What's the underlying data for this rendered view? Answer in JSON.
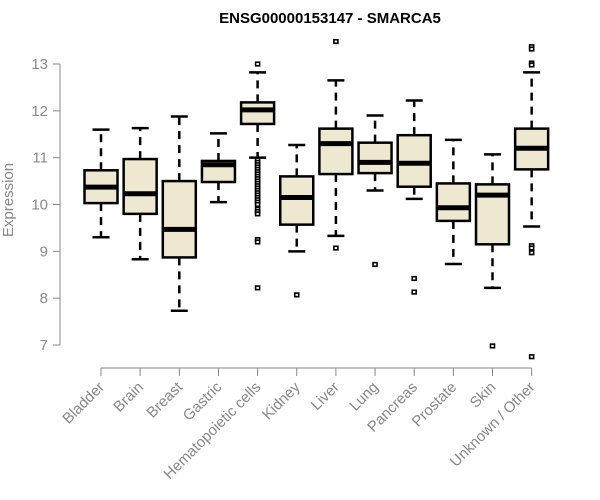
{
  "chart_data": {
    "type": "boxplot",
    "title": "ENSG00000153147 - SMARCA5",
    "xlabel": "",
    "ylabel": "Expression",
    "ylim": [
      7,
      13
    ],
    "yticks": [
      7,
      8,
      9,
      10,
      11,
      12,
      13
    ],
    "grid": false,
    "legend": "none",
    "colors": {
      "box_fill": "#EEE8D0",
      "box_stroke": "#000000",
      "axis": "#888888"
    },
    "categories": [
      "Bladder",
      "Brain",
      "Breast",
      "Gastric",
      "Hematopoietic cells",
      "Kidney",
      "Liver",
      "Lung",
      "Pancreas",
      "Prostate",
      "Skin",
      "Unknown / Other"
    ],
    "boxes": [
      {
        "name": "Bladder",
        "whisker_low": 9.3,
        "q1": 10.03,
        "median": 10.37,
        "q3": 10.73,
        "whisker_high": 11.6,
        "outliers": []
      },
      {
        "name": "Brain",
        "whisker_low": 8.83,
        "q1": 9.8,
        "median": 10.23,
        "q3": 10.97,
        "whisker_high": 11.63,
        "outliers": []
      },
      {
        "name": "Breast",
        "whisker_low": 7.73,
        "q1": 8.87,
        "median": 9.47,
        "q3": 10.5,
        "whisker_high": 11.88,
        "outliers": []
      },
      {
        "name": "Gastric",
        "whisker_low": 10.05,
        "q1": 10.48,
        "median": 10.85,
        "q3": 10.93,
        "whisker_high": 11.52,
        "outliers": []
      },
      {
        "name": "Hematopoietic cells",
        "whisker_low": 11.0,
        "q1": 11.72,
        "median": 12.02,
        "q3": 12.18,
        "whisker_high": 12.82,
        "outliers": [
          13.0,
          10.95,
          10.9,
          10.85,
          10.8,
          10.75,
          10.7,
          10.65,
          10.6,
          10.55,
          10.5,
          10.45,
          10.4,
          10.35,
          10.3,
          10.25,
          10.2,
          10.15,
          10.1,
          10.05,
          10.0,
          9.9,
          9.85,
          9.8,
          9.25,
          9.2,
          8.22
        ]
      },
      {
        "name": "Kidney",
        "whisker_low": 9.0,
        "q1": 9.57,
        "median": 10.15,
        "q3": 10.6,
        "whisker_high": 11.27,
        "outliers": [
          8.07
        ]
      },
      {
        "name": "Liver",
        "whisker_low": 9.33,
        "q1": 10.65,
        "median": 11.3,
        "q3": 11.62,
        "whisker_high": 12.65,
        "outliers": [
          13.48,
          9.07
        ]
      },
      {
        "name": "Lung",
        "whisker_low": 10.3,
        "q1": 10.67,
        "median": 10.9,
        "q3": 11.32,
        "whisker_high": 11.9,
        "outliers": [
          8.72
        ]
      },
      {
        "name": "Pancreas",
        "whisker_low": 10.12,
        "q1": 10.38,
        "median": 10.88,
        "q3": 11.48,
        "whisker_high": 12.22,
        "outliers": [
          8.42,
          8.13
        ]
      },
      {
        "name": "Prostate",
        "whisker_low": 8.73,
        "q1": 9.65,
        "median": 9.93,
        "q3": 10.45,
        "whisker_high": 11.38,
        "outliers": []
      },
      {
        "name": "Skin",
        "whisker_low": 8.22,
        "q1": 9.15,
        "median": 10.2,
        "q3": 10.43,
        "whisker_high": 11.07,
        "outliers": [
          6.98
        ]
      },
      {
        "name": "Unknown / Other",
        "whisker_low": 9.53,
        "q1": 10.75,
        "median": 11.2,
        "q3": 11.62,
        "whisker_high": 12.82,
        "outliers": [
          13.37,
          13.32,
          13.02,
          12.98,
          9.12,
          9.07,
          8.97,
          6.75
        ]
      }
    ]
  }
}
